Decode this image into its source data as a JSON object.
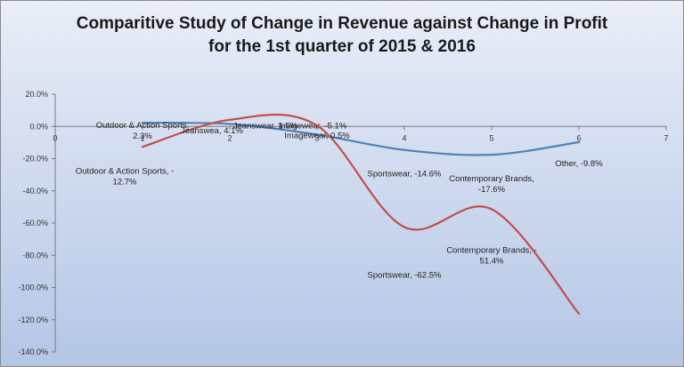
{
  "chart_data": {
    "type": "line",
    "title_line1": "Comparitive Study of Change in Revenue against Change in Profit",
    "title_line2": "for the 1st quarter of 2015 & 2016",
    "xlim": [
      0,
      7
    ],
    "ylim": [
      -140,
      20
    ],
    "x_ticks": [
      "0",
      "1",
      "2",
      "3",
      "4",
      "5",
      "6",
      "7"
    ],
    "y_ticks": [
      "20.0%",
      "0.0%",
      "-20.0%",
      "-40.0%",
      "-60.0%",
      "-80.0%",
      "-100.0%",
      "-120.0%",
      "-140.0%"
    ],
    "grid": false,
    "legend": "none",
    "categories": [
      "Outdoor & Action Sports",
      "Jeanswear",
      "Imagewear",
      "Sportswear",
      "Contemporary Brands",
      "Other"
    ],
    "x": [
      1,
      2,
      3,
      4,
      5,
      6
    ],
    "series": [
      {
        "color": "#4f81bd",
        "values": [
          2.3,
          1.5,
          -5.1,
          -14.6,
          -17.6,
          -9.8
        ],
        "labels": [
          [
            "Outdoor & Action Sports,",
            "2.3%"
          ],
          [
            "Jeanswear, 1.5%"
          ],
          [
            "Imagewear, -5.1%"
          ],
          [
            "Sportswear, -14.6%"
          ],
          [
            "Contemporary Brands,",
            "-17.6%"
          ],
          [
            "Other, -9.8%"
          ]
        ]
      },
      {
        "color": "#c0504d",
        "values": [
          -12.7,
          4.1,
          0.5,
          -62.5,
          -51.4,
          -116.3
        ],
        "labels": [
          [
            "Outdoor & Action Sports, -",
            "12.7%"
          ],
          [
            "Jeanswea, 4.1%"
          ],
          [
            "Imagewear, 0.5%"
          ],
          [
            "Sportswear, -62.5%"
          ],
          [
            "Contemporary Brands, -",
            "51.4%"
          ],
          [
            "Other, -116.3%"
          ]
        ]
      }
    ]
  }
}
